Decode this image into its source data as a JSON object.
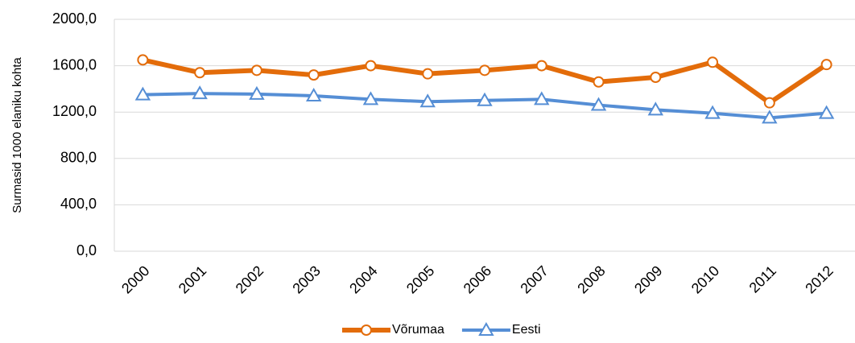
{
  "chart_data": {
    "type": "line",
    "y_label": "Surmasid 1000 elaniku kohta",
    "categories": [
      "2000",
      "2001",
      "2002",
      "2003",
      "2004",
      "2005",
      "2006",
      "2007",
      "2008",
      "2009",
      "2010",
      "2011",
      "2012"
    ],
    "series": [
      {
        "name": "Võrumaa",
        "color": "#e36c0a",
        "marker": "circle",
        "values": [
          1650,
          1540,
          1560,
          1520,
          1600,
          1530,
          1560,
          1600,
          1460,
          1500,
          1630,
          1280,
          1610
        ]
      },
      {
        "name": "Eesti",
        "color": "#558ed5",
        "marker": "triangle",
        "values": [
          1350,
          1360,
          1355,
          1340,
          1310,
          1290,
          1300,
          1310,
          1260,
          1220,
          1190,
          1150,
          1190
        ]
      }
    ],
    "ylim": [
      0,
      2000
    ],
    "yticks": [
      {
        "value": 0,
        "label": "0,0"
      },
      {
        "value": 400,
        "label": "400,0"
      },
      {
        "value": 800,
        "label": "800,0"
      },
      {
        "value": 1200,
        "label": "1200,0"
      },
      {
        "value": 1600,
        "label": "1600,0"
      },
      {
        "value": 2000,
        "label": "2000,0"
      }
    ],
    "grid": true,
    "legend": "bottom"
  }
}
